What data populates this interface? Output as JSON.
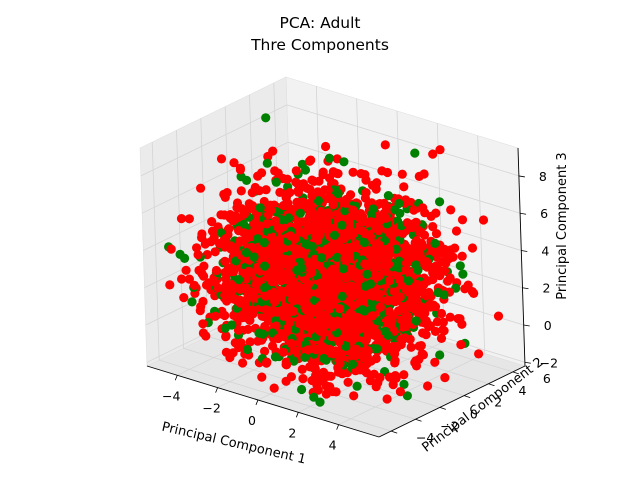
{
  "chart_data": {
    "type": "scatter",
    "projection": "3d",
    "title_line1": "PCA: Adult",
    "title_line2": "Thre Components",
    "xlabel": "Principal Component 1",
    "ylabel": "Principal Component 2",
    "zlabel": "Principal Component 3",
    "xlim": [
      -5.5,
      6.0
    ],
    "ylim": [
      -5.0,
      7.0
    ],
    "zlim": [
      -2.2,
      9.5
    ],
    "xticks": [
      "−4",
      "−2",
      "0",
      "2",
      "4"
    ],
    "xtick_values": [
      -4,
      -2,
      0,
      2,
      4
    ],
    "yticks": [
      "−4",
      "−2",
      "0",
      "2",
      "4",
      "6"
    ],
    "ytick_values": [
      -4,
      -2,
      0,
      2,
      4,
      6
    ],
    "zticks": [
      "−2",
      "0",
      "2",
      "4",
      "6",
      "8"
    ],
    "ztick_values": [
      -2,
      0,
      2,
      4,
      6,
      8
    ],
    "grid": true,
    "series": [
      {
        "color": "#ff0000",
        "point_count": 2800,
        "center": [
          0.0,
          1.0,
          2.5
        ],
        "spread": [
          2.2,
          2.6,
          2.0
        ]
      },
      {
        "color": "#008000",
        "point_count": 700,
        "center": [
          0.0,
          1.0,
          2.5
        ],
        "spread": [
          2.2,
          2.6,
          2.0
        ]
      }
    ],
    "extra_points": [
      {
        "x": -3.8,
        "y": 2.5,
        "z": 9.3,
        "color": "#008000"
      },
      {
        "x": 4.8,
        "y": -3.0,
        "z": 1.5,
        "color": "#008000"
      }
    ]
  },
  "colors": {
    "pane_back": "#f2f2f2",
    "pane_side": "#ebebeb",
    "pane_floor": "#e6e6e6",
    "grid": "#ffffff"
  }
}
